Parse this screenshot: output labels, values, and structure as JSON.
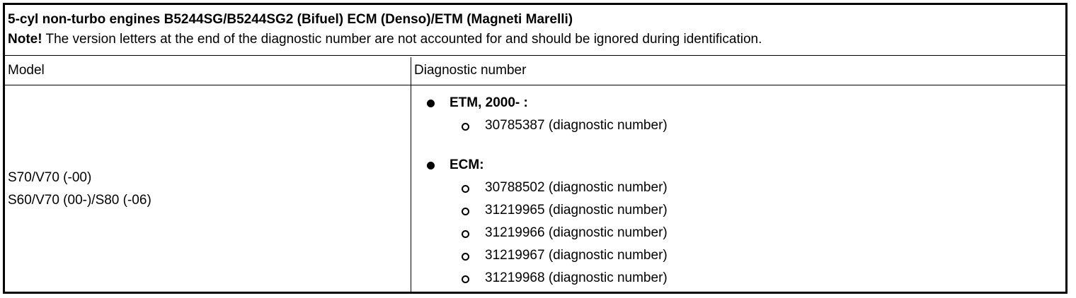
{
  "title": "5-cyl non-turbo engines B5244SG/B5244SG2 (Bifuel) ECM (Denso)/ETM (Magneti Marelli)",
  "note": {
    "label": "Note!",
    "text": " The version letters at the end of the diagnostic number are not accounted for and should be ignored during identification."
  },
  "columns": [
    "Model",
    "Diagnostic number"
  ],
  "models": [
    "S70/V70 (-00)",
    "S60/V70 (00-)/S80 (-06)"
  ],
  "groups": [
    {
      "label": "ETM, 2000- :",
      "items": [
        "30785387 (diagnostic number)"
      ]
    },
    {
      "label": "ECM:",
      "items": [
        "30788502 (diagnostic number)",
        "31219965 (diagnostic number)",
        "31219966 (diagnostic number)",
        "31219967 (diagnostic number)",
        "31219968 (diagnostic number)"
      ]
    }
  ]
}
